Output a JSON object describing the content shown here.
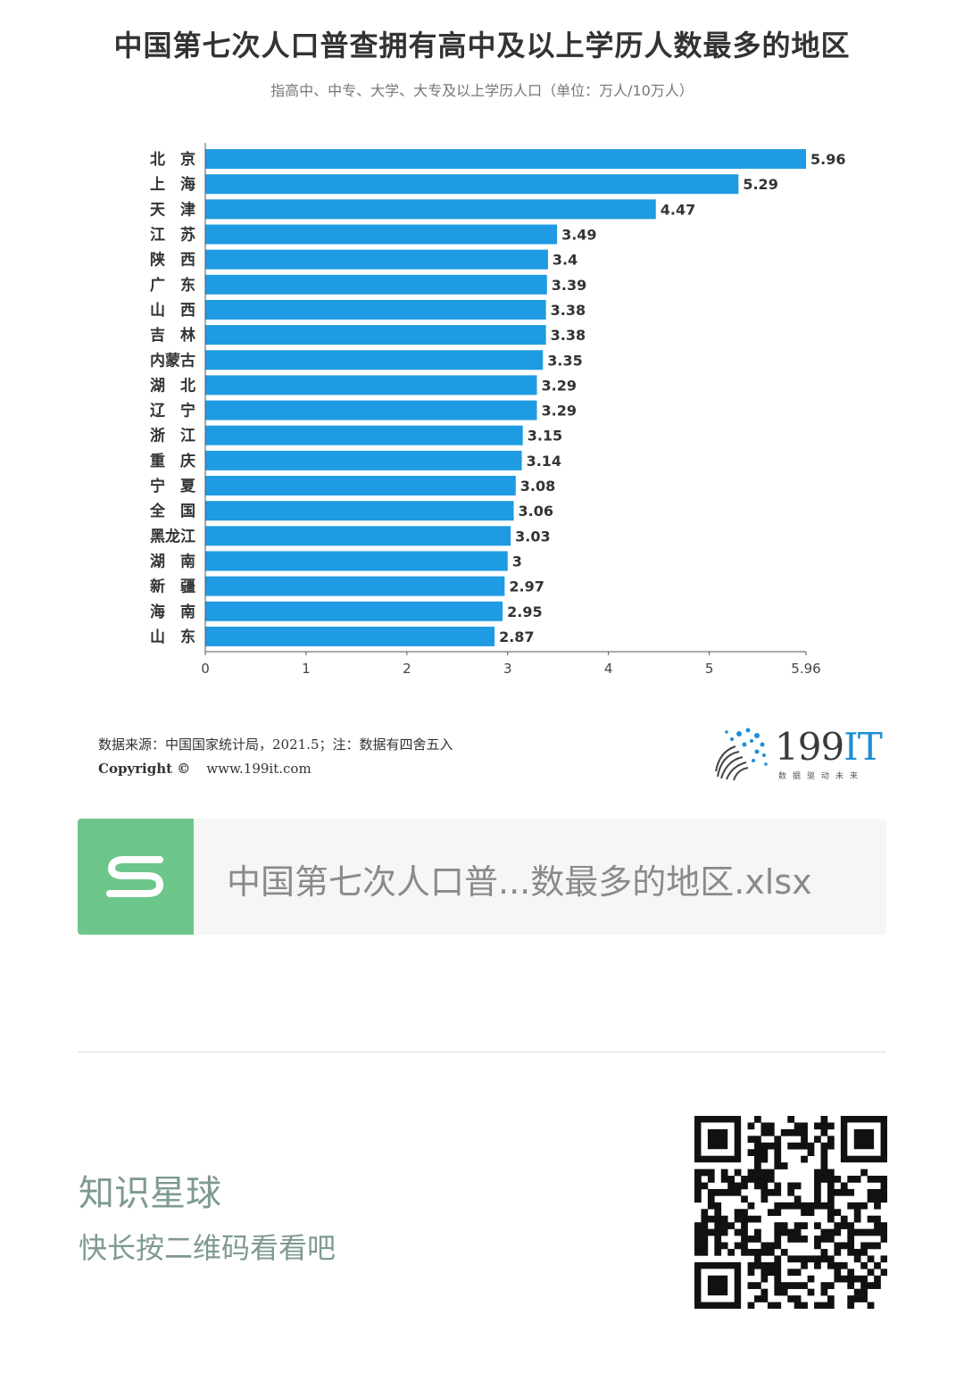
{
  "chart_data": {
    "type": "bar",
    "orientation": "horizontal",
    "title": "中国第七次人口普查拥有高中及以上学历人数最多的地区",
    "subtitle": "指高中、中专、大学、大专及以上学历人口（单位：万人/10万人）",
    "categories": [
      "北　京",
      "上　海",
      "天　津",
      "江　苏",
      "陕　西",
      "广　东",
      "山　西",
      "吉　林",
      "内蒙古",
      "湖　北",
      "辽　宁",
      "浙　江",
      "重　庆",
      "宁　夏",
      "全　国",
      "黑龙江",
      "湖　南",
      "新　疆",
      "海　南",
      "山　东"
    ],
    "values": [
      5.96,
      5.29,
      4.47,
      3.49,
      3.4,
      3.39,
      3.38,
      3.38,
      3.35,
      3.29,
      3.29,
      3.15,
      3.14,
      3.08,
      3.06,
      3.03,
      3,
      2.97,
      2.95,
      2.87
    ],
    "value_labels": [
      "5.96",
      "5.29",
      "4.47",
      "3.49",
      "3.4",
      "3.39",
      "3.38",
      "3.38",
      "3.35",
      "3.29",
      "3.29",
      "3.15",
      "3.14",
      "3.08",
      "3.06",
      "3.03",
      "3",
      "2.97",
      "2.95",
      "2.87"
    ],
    "x_ticks": [
      "0",
      "1",
      "2",
      "3",
      "4",
      "5",
      "5.96"
    ],
    "x_tick_values": [
      0,
      1,
      2,
      3,
      4,
      5,
      5.96
    ],
    "xlim": [
      0,
      5.96
    ],
    "grid": false,
    "bar_color": "#1e9be2"
  },
  "footer": {
    "source": "数据来源：中国国家统计局，2021.5；注：数据有四舍五入",
    "copyright_label": "Copyright ©",
    "copyright_url": "www.199it.com"
  },
  "brand": {
    "name_number": "199",
    "name_it": "IT",
    "slogan": "数据驱动未来"
  },
  "file_card": {
    "file_name": "中国第七次人口普...数最多的地区.xlsx",
    "icon": "spreadsheet-s-icon"
  },
  "planet": {
    "title": "知识星球",
    "subtitle": "快长按二维码看看吧"
  }
}
